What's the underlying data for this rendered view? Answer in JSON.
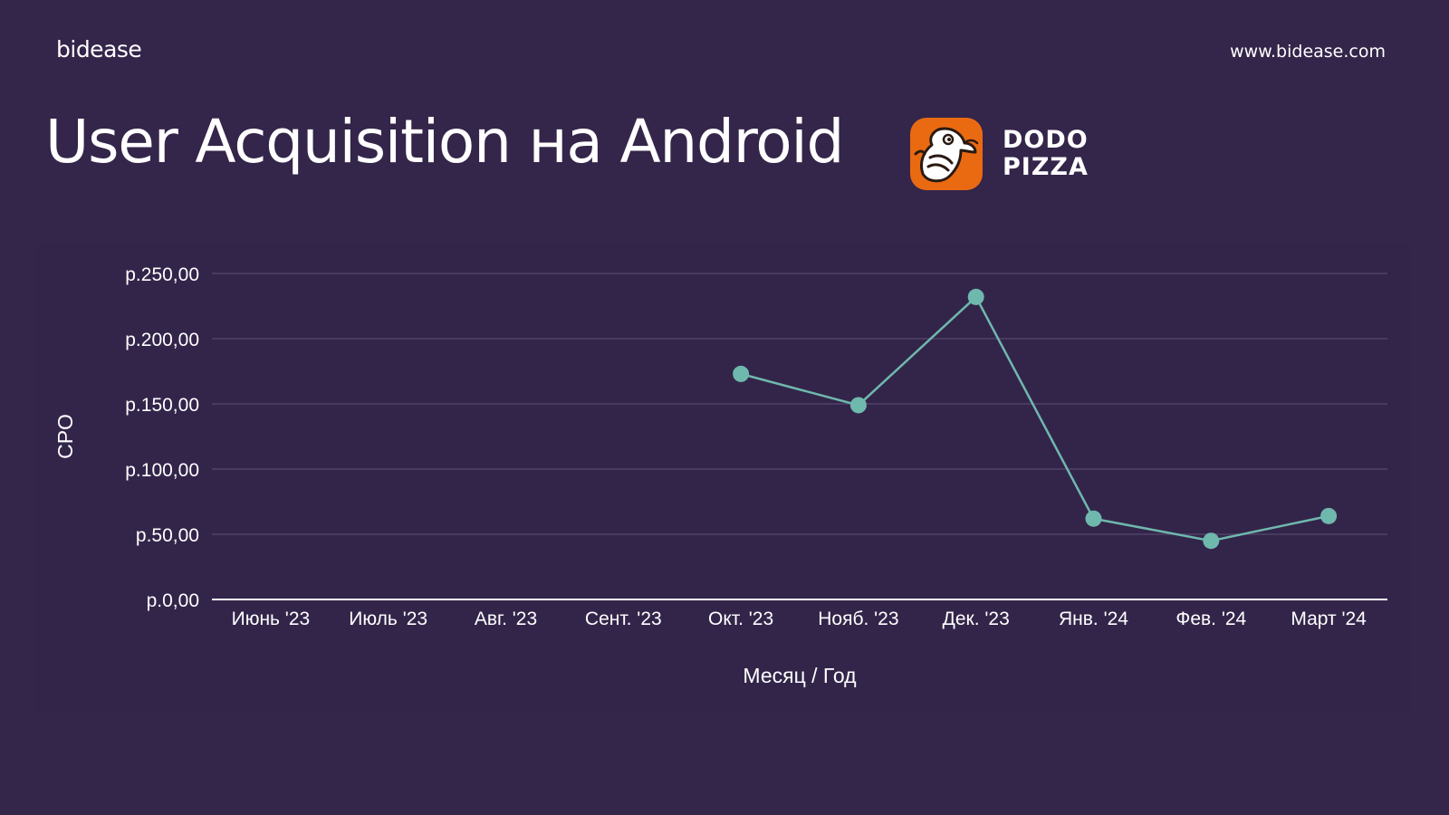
{
  "header": {
    "brand": "bidease",
    "url": "www.bidease.com"
  },
  "title": "User Acquisition на Android",
  "logo": {
    "icon": "dodo-bird-icon",
    "line1": "DODO",
    "line2": "PIZZA",
    "color": "#ea6a12"
  },
  "colors": {
    "background": "#34254a",
    "series": "#6fb8ad",
    "grid": "#514268"
  },
  "chart_data": {
    "type": "line",
    "categories": [
      "Июнь '23",
      "Июль '23",
      "Авг. '23",
      "Сент. '23",
      "Окт. '23",
      "Нояб. '23",
      "Дек. '23",
      "Янв. '24",
      "Фев. '24",
      "Март '24"
    ],
    "series": [
      {
        "values": [
          null,
          null,
          null,
          null,
          173,
          149,
          232,
          62,
          45,
          64
        ]
      }
    ],
    "yticks": [
      0,
      50,
      100,
      150,
      200,
      250
    ],
    "ytick_labels": [
      "р.0,00",
      "р.50,00",
      "р.100,00",
      "р.150,00",
      "р.200,00",
      "р.250,00"
    ],
    "ylim": [
      0,
      250
    ],
    "xlabel": "Месяц / Год",
    "ylabel": "CPO",
    "grid": true,
    "legend": "none"
  }
}
